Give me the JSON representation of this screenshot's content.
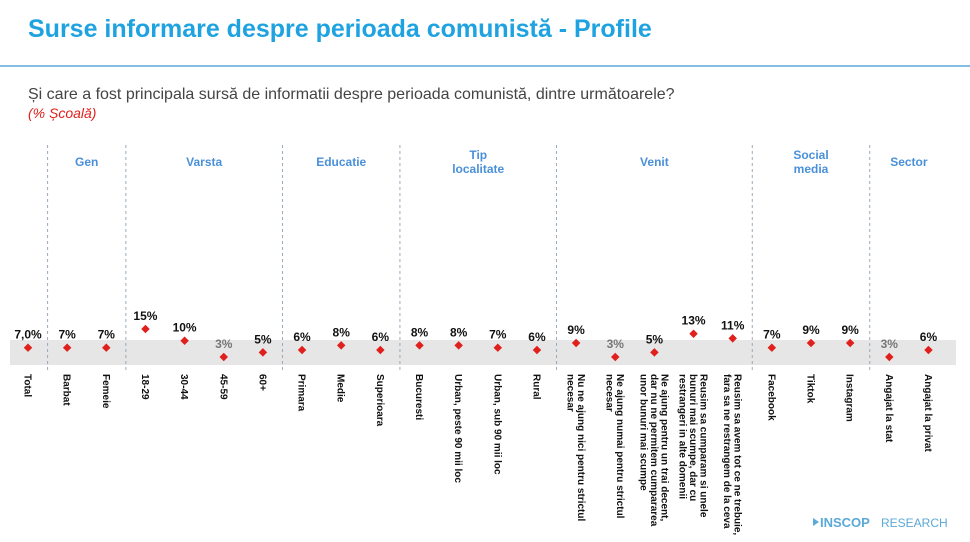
{
  "chart_data": {
    "type": "dot",
    "title": "Surse informare despre perioada comunistă - Profile",
    "subtitle": "Și care a fost principala sursă de informatii despre perioada comunistă, dintre următoarele?",
    "note": "(% Școală)",
    "color": "#e0201c",
    "groups": [
      {
        "name": null,
        "categories": [
          "Total"
        ],
        "values": [
          7.0
        ],
        "value_labels": [
          "7,0%"
        ]
      },
      {
        "name": "Gen",
        "categories": [
          "Barbat",
          "Femeie"
        ],
        "values": [
          7,
          7
        ],
        "value_labels": [
          "7%",
          "7%"
        ]
      },
      {
        "name": "Varsta",
        "categories": [
          "18-29",
          "30-44",
          "45-59",
          "60+"
        ],
        "values": [
          15,
          10,
          3,
          5
        ],
        "value_labels": [
          "15%",
          "10%",
          "3%",
          "5%"
        ]
      },
      {
        "name": "Educatie",
        "categories": [
          "Primara",
          "Medie",
          "Superioara"
        ],
        "values": [
          6,
          8,
          6
        ],
        "value_labels": [
          "6%",
          "8%",
          "6%"
        ]
      },
      {
        "name": "Tip localitate",
        "categories": [
          "Bucuresti",
          "Urban, peste 90 mii loc",
          "Urban, sub 90 mii loc",
          "Rural"
        ],
        "values": [
          8,
          8,
          7,
          6
        ],
        "value_labels": [
          "8%",
          "8%",
          "7%",
          "6%"
        ]
      },
      {
        "name": "Venit",
        "categories": [
          "Nu ne ajung nici pentru strictul necesar",
          "Ne ajung numai pentru strictul necesar",
          "Ne ajung pentru un trai decent, dar nu ne permitem cumpararea unor bunuri mai scumpe",
          "Reusim sa cumparam si unele bunuri mai scumpe, dar cu restrangeri in alte domenii",
          "Reusim sa avem tot ce ne trebuie, fara sa ne restrangem de la ceva"
        ],
        "values": [
          9,
          3,
          5,
          13,
          11
        ],
        "value_labels": [
          "9%",
          "3%",
          "5%",
          "13%",
          "11%"
        ]
      },
      {
        "name": "Social media",
        "categories": [
          "Facebook",
          "Tiktok",
          "Instagram"
        ],
        "values": [
          7,
          9,
          9
        ],
        "value_labels": [
          "7%",
          "9%",
          "9%"
        ]
      },
      {
        "name": "Sector",
        "categories": [
          "Angajat la stat",
          "Angajat la privat"
        ],
        "values": [
          3,
          6
        ],
        "value_labels": [
          "3%",
          "6%"
        ]
      }
    ]
  },
  "logo": {
    "brand": "INSCOP",
    "suffix": "RESEARCH"
  }
}
